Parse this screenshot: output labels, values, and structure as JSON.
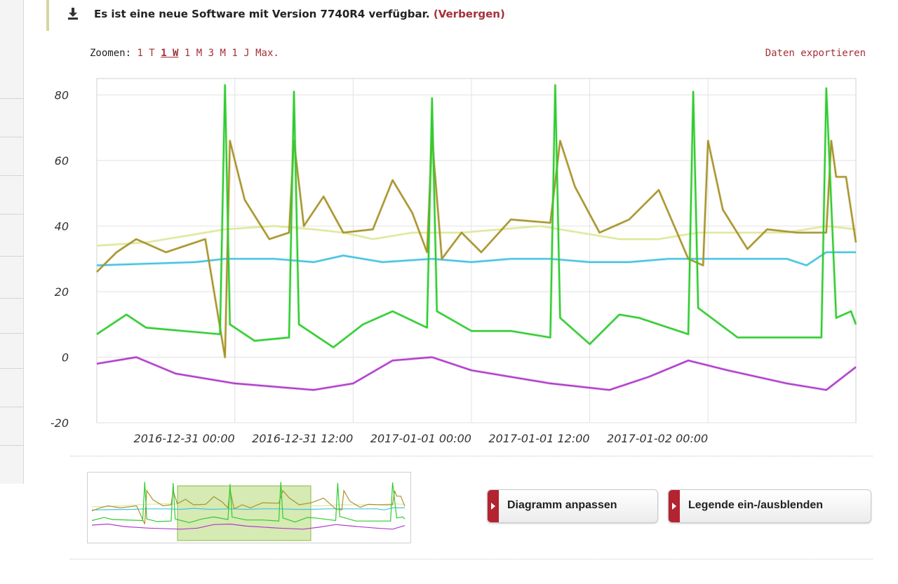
{
  "notice": {
    "icon": "download-icon",
    "text": "Es ist eine neue Software mit Version 7740R4 verfügbar.",
    "hide_link": "(Verbergen)"
  },
  "zoom": {
    "label": "Zoomen:",
    "options": [
      "1 T",
      "1 W",
      "1 M",
      "3 M",
      "1 J",
      "Max."
    ],
    "active": "1 W"
  },
  "export_label": "Daten exportieren",
  "buttons": {
    "adjust": "Diagramm anpassen",
    "legend": "Legende ein-/ausblenden"
  },
  "colors": {
    "accent": "#a3303a",
    "green": "#2fcc2f",
    "olive": "#a8932a",
    "lightyellow": "#dfe89a",
    "cyan": "#45c2e0",
    "purple": "#b03ccc"
  },
  "chart_data": {
    "type": "line",
    "ylim": [
      -20,
      85
    ],
    "yticks": [
      80,
      60,
      40,
      20,
      0,
      -20
    ],
    "xlim": [
      "2016-12-30 10:00",
      "2017-01-02 15:00"
    ],
    "xticks": [
      "2016-12-31 00:00",
      "2016-12-31 12:00",
      "2017-01-01 00:00",
      "2017-01-01 12:00",
      "2017-01-02 00:00"
    ],
    "grid": true,
    "series": [
      {
        "color": "#dfe89a",
        "points": [
          [
            "2016-12-30 10:00",
            34
          ],
          [
            "2016-12-30 15:00",
            35
          ],
          [
            "2016-12-30 19:00",
            37
          ],
          [
            "2016-12-30 23:00",
            39
          ],
          [
            "2016-12-31 04:00",
            40
          ],
          [
            "2016-12-31 08:00",
            39
          ],
          [
            "2016-12-31 11:00",
            38
          ],
          [
            "2016-12-31 14:00",
            36
          ],
          [
            "2016-12-31 18:00",
            38
          ],
          [
            "2016-12-31 23:00",
            38
          ],
          [
            "2017-01-01 03:00",
            39
          ],
          [
            "2017-01-01 07:00",
            40
          ],
          [
            "2017-01-01 11:00",
            38
          ],
          [
            "2017-01-01 15:00",
            36
          ],
          [
            "2017-01-01 19:00",
            36
          ],
          [
            "2017-01-01 23:00",
            38
          ],
          [
            "2017-01-02 04:00",
            38
          ],
          [
            "2017-01-02 08:00",
            38
          ],
          [
            "2017-01-02 10:00",
            39
          ],
          [
            "2017-01-02 12:00",
            40
          ],
          [
            "2017-01-02 15:00",
            39
          ]
        ]
      },
      {
        "color": "#45c2e0",
        "points": [
          [
            "2016-12-30 10:00",
            28
          ],
          [
            "2016-12-30 15:00",
            28.5
          ],
          [
            "2016-12-30 20:00",
            29
          ],
          [
            "2016-12-30 23:00",
            30
          ],
          [
            "2016-12-31 04:00",
            30
          ],
          [
            "2016-12-31 08:00",
            29
          ],
          [
            "2016-12-31 11:00",
            31
          ],
          [
            "2016-12-31 15:00",
            29
          ],
          [
            "2016-12-31 20:00",
            30
          ],
          [
            "2017-01-01 00:00",
            29
          ],
          [
            "2017-01-01 04:00",
            30
          ],
          [
            "2017-01-01 08:00",
            30
          ],
          [
            "2017-01-01 12:00",
            29
          ],
          [
            "2017-01-01 16:00",
            29
          ],
          [
            "2017-01-01 20:00",
            30
          ],
          [
            "2017-01-02 02:00",
            30
          ],
          [
            "2017-01-02 08:00",
            30
          ],
          [
            "2017-01-02 10:00",
            28
          ],
          [
            "2017-01-02 12:00",
            32
          ],
          [
            "2017-01-02 15:00",
            32
          ]
        ]
      },
      {
        "color": "#a8932a",
        "points": [
          [
            "2016-12-30 10:00",
            26
          ],
          [
            "2016-12-30 12:00",
            32
          ],
          [
            "2016-12-30 14:00",
            36
          ],
          [
            "2016-12-30 17:00",
            32
          ],
          [
            "2016-12-30 21:00",
            36
          ],
          [
            "2016-12-30 23:00",
            0
          ],
          [
            "2016-12-30 23:30",
            66
          ],
          [
            "2016-12-31 01:00",
            48
          ],
          [
            "2016-12-31 03:30",
            36
          ],
          [
            "2016-12-31 05:30",
            38
          ],
          [
            "2016-12-31 06:00",
            66
          ],
          [
            "2016-12-31 07:00",
            40
          ],
          [
            "2016-12-31 09:00",
            49
          ],
          [
            "2016-12-31 11:00",
            38
          ],
          [
            "2016-12-31 14:00",
            39
          ],
          [
            "2016-12-31 16:00",
            54
          ],
          [
            "2016-12-31 18:00",
            44
          ],
          [
            "2016-12-31 19:30",
            32
          ],
          [
            "2016-12-31 20:00",
            67
          ],
          [
            "2016-12-31 21:00",
            30
          ],
          [
            "2016-12-31 23:00",
            38
          ],
          [
            "2017-01-01 01:00",
            32
          ],
          [
            "2017-01-01 04:00",
            42
          ],
          [
            "2017-01-01 08:00",
            41
          ],
          [
            "2017-01-01 09:00",
            66
          ],
          [
            "2017-01-01 10:30",
            52
          ],
          [
            "2017-01-01 13:00",
            38
          ],
          [
            "2017-01-01 16:00",
            42
          ],
          [
            "2017-01-01 19:00",
            51
          ],
          [
            "2017-01-01 22:00",
            30
          ],
          [
            "2017-01-01 23:30",
            28
          ],
          [
            "2017-01-02 00:00",
            66
          ],
          [
            "2017-01-02 01:30",
            45
          ],
          [
            "2017-01-02 04:00",
            33
          ],
          [
            "2017-01-02 06:00",
            39
          ],
          [
            "2017-01-02 09:00",
            38
          ],
          [
            "2017-01-02 12:00",
            38
          ],
          [
            "2017-01-02 12:30",
            66
          ],
          [
            "2017-01-02 13:00",
            55
          ],
          [
            "2017-01-02 14:00",
            55
          ],
          [
            "2017-01-02 15:00",
            35
          ]
        ]
      },
      {
        "color": "#2fcc2f",
        "points": [
          [
            "2016-12-30 10:00",
            7
          ],
          [
            "2016-12-30 13:00",
            13
          ],
          [
            "2016-12-30 15:00",
            9
          ],
          [
            "2016-12-30 22:30",
            7
          ],
          [
            "2016-12-30 23:00",
            83
          ],
          [
            "2016-12-30 23:30",
            10
          ],
          [
            "2016-12-31 02:00",
            5
          ],
          [
            "2016-12-31 05:30",
            6
          ],
          [
            "2016-12-31 06:00",
            81
          ],
          [
            "2016-12-31 06:30",
            10
          ],
          [
            "2016-12-31 10:00",
            3
          ],
          [
            "2016-12-31 13:00",
            10
          ],
          [
            "2016-12-31 16:00",
            14
          ],
          [
            "2016-12-31 19:30",
            9
          ],
          [
            "2016-12-31 20:00",
            79
          ],
          [
            "2016-12-31 20:30",
            14
          ],
          [
            "2017-01-01 00:00",
            8
          ],
          [
            "2017-01-01 04:00",
            8
          ],
          [
            "2017-01-01 08:00",
            6
          ],
          [
            "2017-01-01 08:30",
            83
          ],
          [
            "2017-01-01 09:00",
            12
          ],
          [
            "2017-01-01 12:00",
            4
          ],
          [
            "2017-01-01 15:00",
            13
          ],
          [
            "2017-01-01 17:00",
            12
          ],
          [
            "2017-01-01 22:00",
            7
          ],
          [
            "2017-01-01 22:30",
            81
          ],
          [
            "2017-01-01 23:00",
            15
          ],
          [
            "2017-01-02 03:00",
            6
          ],
          [
            "2017-01-02 09:00",
            6
          ],
          [
            "2017-01-02 11:30",
            6
          ],
          [
            "2017-01-02 12:00",
            82
          ],
          [
            "2017-01-02 13:00",
            12
          ],
          [
            "2017-01-02 14:30",
            14
          ],
          [
            "2017-01-02 15:00",
            10
          ]
        ]
      },
      {
        "color": "#b03ccc",
        "points": [
          [
            "2016-12-30 10:00",
            -2
          ],
          [
            "2016-12-30 14:00",
            0
          ],
          [
            "2016-12-30 18:00",
            -5
          ],
          [
            "2016-12-31 00:00",
            -8
          ],
          [
            "2016-12-31 08:00",
            -10
          ],
          [
            "2016-12-31 12:00",
            -8
          ],
          [
            "2016-12-31 16:00",
            -1
          ],
          [
            "2016-12-31 20:00",
            0
          ],
          [
            "2017-01-01 00:00",
            -4
          ],
          [
            "2017-01-01 08:00",
            -8
          ],
          [
            "2017-01-01 14:00",
            -10
          ],
          [
            "2017-01-01 18:00",
            -6
          ],
          [
            "2017-01-01 22:00",
            -1
          ],
          [
            "2017-01-02 02:00",
            -4
          ],
          [
            "2017-01-02 08:00",
            -8
          ],
          [
            "2017-01-02 12:00",
            -10
          ],
          [
            "2017-01-02 15:00",
            -3
          ]
        ]
      }
    ]
  }
}
